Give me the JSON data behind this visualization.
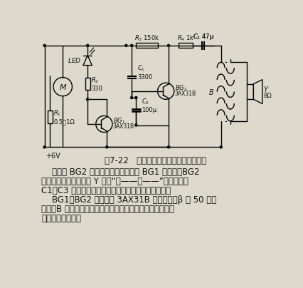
{
  "title": "图7-22   录音机倒带终止指示器电路之二",
  "bg_color": "#ddd9cc",
  "text_color": "#111111",
  "caption_fontsize": 8.5,
  "body_fontsize": 8.5,
  "body_lines": [
    "    晶体管 BG2 即组成间歇振荡器，当 BG1 导通时，BG2",
    "截通电工作，由扬声器 Y 发出“哪——嗯——”鸣声。更改",
    "C1、C3 容量可改变间歇振荡器振荡频率和间隔时间。",
    "    BG1、BG2 均可选用 3AX31B 锗三极管，β 值 50 左右",
    "即可。B 可用小型晶体管收音机用的输出变压器。其它阻容",
    "元件无特殊要求。"
  ]
}
